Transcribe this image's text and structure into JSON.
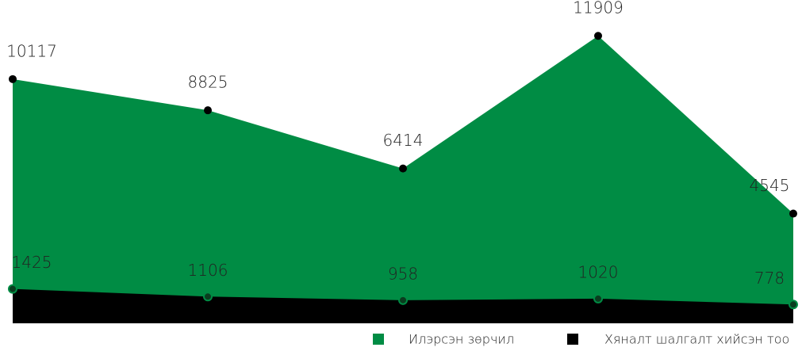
{
  "chart_data": {
    "type": "area",
    "categories": [
      null,
      null,
      null,
      null,
      null
    ],
    "series": [
      {
        "name": "Илэрсэн зөрчил",
        "color": "#008c44",
        "values": [
          10117,
          8825,
          6414,
          11909,
          4545
        ]
      },
      {
        "name": "Хяналт шалгалт хийсэн тоо",
        "color": "#000000",
        "values": [
          1425,
          1106,
          958,
          1020,
          778
        ]
      }
    ],
    "ylim": [
      0,
      13000
    ],
    "grid": false,
    "legend": "bottom"
  }
}
